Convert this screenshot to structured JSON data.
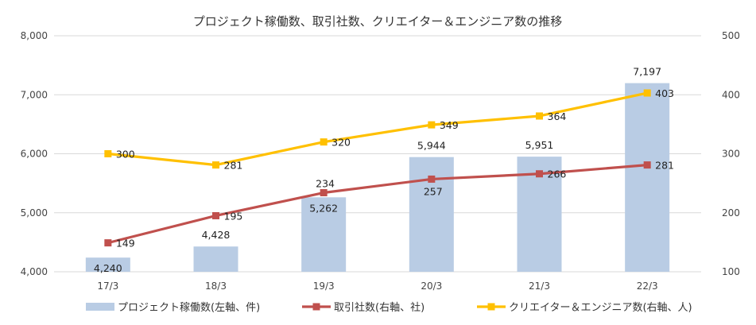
{
  "chart_data": {
    "type": "bar",
    "title": "プロジェクト稼働数、取引社数、クリエイター＆エンジニア数の推移",
    "categories": [
      "17/3",
      "18/3",
      "19/3",
      "20/3",
      "21/3",
      "22/3"
    ],
    "y_left": {
      "min": 4000,
      "max": 8000,
      "ticks": [
        "4,000",
        "5,000",
        "6,000",
        "7,000",
        "8,000"
      ]
    },
    "y_right": {
      "min": 100,
      "max": 500,
      "ticks": [
        "100",
        "200",
        "300",
        "400",
        "500"
      ]
    },
    "grid": true,
    "legend_position": "bottom",
    "series": [
      {
        "name": "プロジェクト稼働数(左軸、件)",
        "kind": "bar",
        "axis": "left",
        "color": "#b9cce4",
        "values": [
          4240,
          4428,
          5262,
          5944,
          5951,
          7197
        ],
        "labels": [
          "4,240",
          "4,428",
          "5,262",
          "5,944",
          "5,951",
          "7,197"
        ]
      },
      {
        "name": "取引社数(右軸、社)",
        "kind": "line",
        "axis": "right",
        "color": "#c0504d",
        "marker": "square",
        "values": [
          149,
          195,
          234,
          257,
          266,
          281
        ],
        "labels": [
          "149",
          "195",
          "234",
          "257",
          "266",
          "281"
        ]
      },
      {
        "name": "クリエイター＆エンジニア数(右軸、人)",
        "kind": "line",
        "axis": "right",
        "color": "#ffc000",
        "marker": "square",
        "values": [
          300,
          281,
          320,
          349,
          364,
          403
        ],
        "labels": [
          "300",
          "281",
          "320",
          "349",
          "364",
          "403"
        ]
      }
    ]
  }
}
